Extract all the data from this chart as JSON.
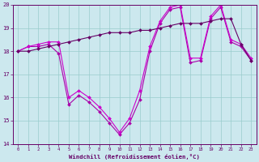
{
  "x": [
    0,
    1,
    2,
    3,
    4,
    5,
    6,
    7,
    8,
    9,
    10,
    11,
    12,
    13,
    14,
    15,
    16,
    17,
    18,
    19,
    20,
    21,
    22,
    23
  ],
  "line1": [
    18.0,
    18.2,
    18.2,
    18.3,
    17.9,
    15.7,
    16.1,
    15.8,
    15.4,
    14.9,
    14.4,
    14.9,
    15.9,
    18.0,
    19.2,
    19.8,
    19.9,
    17.5,
    17.6,
    19.4,
    19.9,
    18.4,
    18.2,
    17.6
  ],
  "line2": [
    18.0,
    18.2,
    18.3,
    18.4,
    18.4,
    16.0,
    16.3,
    16.0,
    15.6,
    15.1,
    14.5,
    15.1,
    16.3,
    18.2,
    19.3,
    19.9,
    20.0,
    17.7,
    17.7,
    19.5,
    20.0,
    18.5,
    18.3,
    17.7
  ],
  "line3": [
    18.0,
    18.0,
    18.1,
    18.2,
    18.3,
    18.4,
    18.5,
    18.6,
    18.7,
    18.8,
    18.8,
    18.8,
    18.9,
    18.9,
    19.0,
    19.1,
    19.2,
    19.2,
    19.2,
    19.3,
    19.4,
    19.4,
    18.3,
    17.6
  ],
  "line_color1": "#aa00aa",
  "line_color2": "#cc00cc",
  "line_color3": "#660066",
  "bg_color": "#cce8ee",
  "grid_color": "#99cccc",
  "axis_color": "#660066",
  "text_color": "#660066",
  "xlabel": "Windchill (Refroidissement éolien,°C)",
  "ylim": [
    14,
    20
  ],
  "xlim": [
    -0.5,
    23.5
  ],
  "yticks": [
    14,
    15,
    16,
    17,
    18,
    19,
    20
  ],
  "xticks": [
    0,
    1,
    2,
    3,
    4,
    5,
    6,
    7,
    8,
    9,
    10,
    11,
    12,
    13,
    14,
    15,
    16,
    17,
    18,
    19,
    20,
    21,
    22,
    23
  ]
}
